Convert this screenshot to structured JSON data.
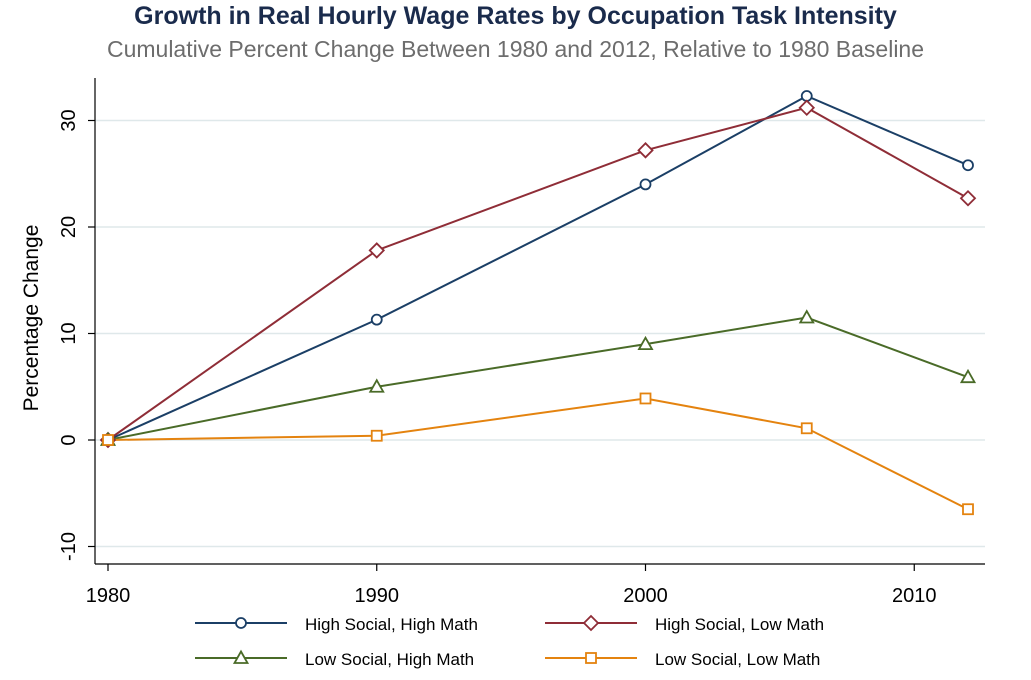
{
  "title": "Growth in Real Hourly Wage Rates by Occupation Task Intensity",
  "subtitle": "Cumulative Percent Change Between 1980 and 2012, Relative to 1980 Baseline",
  "colors": {
    "title": "#1a2b4c",
    "subtitle": "#6d6d6d",
    "grid": "#dfe8ea"
  },
  "chart_data": {
    "type": "line",
    "title": "Growth in Real Hourly Wage Rates by Occupation Task Intensity",
    "subtitle": "Cumulative Percent Change Between 1980 and 2012, Relative to 1980 Baseline",
    "xlabel": "",
    "ylabel": "Percentage Change",
    "xlim": [
      1980,
      2012
    ],
    "ylim": [
      -11.5,
      33.8
    ],
    "xticks": [
      1980,
      1990,
      2000,
      2010
    ],
    "yticks": [
      -10,
      0,
      10,
      20,
      30
    ],
    "grid": true,
    "legend_position": "bottom",
    "x": [
      1980,
      1990,
      2000,
      2006,
      2012
    ],
    "series": [
      {
        "name": "High Social, High Math",
        "color": "#1b3f66",
        "marker": "circle",
        "values": [
          0,
          11.3,
          24.0,
          32.3,
          25.8
        ]
      },
      {
        "name": "High Social, Low Math",
        "color": "#8f2d37",
        "marker": "diamond",
        "values": [
          0,
          17.8,
          27.2,
          31.2,
          22.7
        ]
      },
      {
        "name": "Low Social, High Math",
        "color": "#4a6b28",
        "marker": "triangle",
        "values": [
          0,
          5.0,
          9.0,
          11.5,
          5.9
        ]
      },
      {
        "name": "Low Social, Low Math",
        "color": "#e4830f",
        "marker": "square",
        "values": [
          0,
          0.4,
          3.9,
          1.1,
          -6.5
        ]
      }
    ]
  }
}
